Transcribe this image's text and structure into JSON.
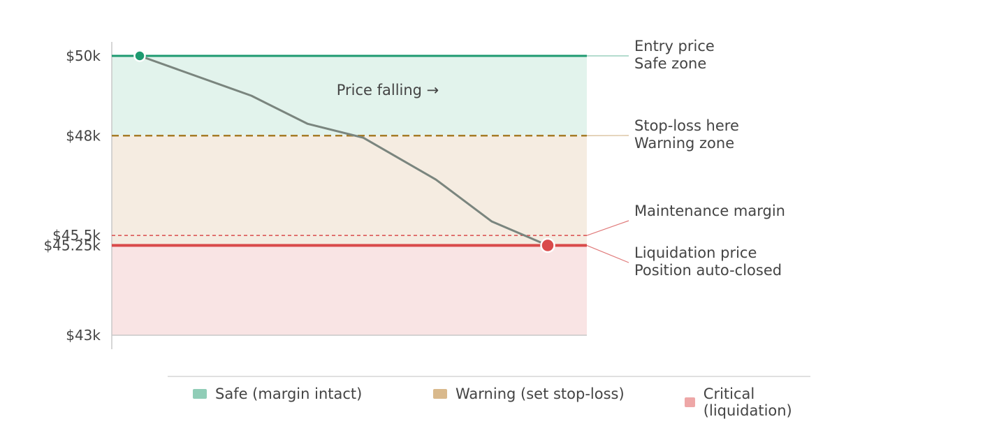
{
  "chart_data": {
    "type": "line",
    "y_unit": "$",
    "ylim": [
      43000,
      50000
    ],
    "y_ticks": [
      {
        "value": 50000,
        "label": "$50k"
      },
      {
        "value": 48000,
        "label": "$48k"
      },
      {
        "value": 45500,
        "label": "$45.5k"
      },
      {
        "value": 45250,
        "label": "$45.25k"
      },
      {
        "value": 43000,
        "label": "$43k"
      }
    ],
    "zones": [
      {
        "id": "safe",
        "from": 48000,
        "to": 50000,
        "color": "#e2f3ec"
      },
      {
        "id": "warning",
        "from": 45250,
        "to": 48000,
        "color": "#f5ece1"
      },
      {
        "id": "critical",
        "from": 43000,
        "to": 45250,
        "color": "#f9e4e4"
      }
    ],
    "levels": [
      {
        "id": "entry",
        "value": 50000,
        "color": "#1e9a70",
        "style": "solid",
        "lines": [
          "Entry price",
          "Safe zone"
        ]
      },
      {
        "id": "stoploss",
        "value": 48000,
        "color": "#a67c28",
        "style": "dashed",
        "lines": [
          "Stop-loss here",
          "Warning zone"
        ]
      },
      {
        "id": "maintenance",
        "value": 45500,
        "color": "#d94b4b",
        "style": "dotted",
        "lines": [
          "Maintenance margin"
        ]
      },
      {
        "id": "liquidation",
        "value": 45250,
        "color": "#d94b4b",
        "style": "solid",
        "lines": [
          "Liquidation price",
          "Position auto-closed"
        ]
      }
    ],
    "series": [
      {
        "x": [
          0,
          2,
          3,
          4,
          5.3,
          6.3,
          7.3
        ],
        "values": [
          50000,
          49000,
          48300,
          47950,
          46900,
          45850,
          45250
        ],
        "color": "#7a857e"
      }
    ],
    "xlim": [
      -0.5,
      8
    ],
    "start_marker": {
      "x": 0,
      "value": 50000,
      "color": "#1e9a70"
    },
    "end_marker": {
      "x": 7.3,
      "value": 45250,
      "color": "#d94b4b"
    },
    "annotation": "Price falling →"
  },
  "legend": [
    {
      "label": "Safe (margin intact)",
      "color": "#90cdb7"
    },
    {
      "label": "Warning (set stop-loss)",
      "color": "#d9b98c"
    },
    {
      "label": "Critical (liquidation)",
      "color": "#eea7a7"
    }
  ]
}
